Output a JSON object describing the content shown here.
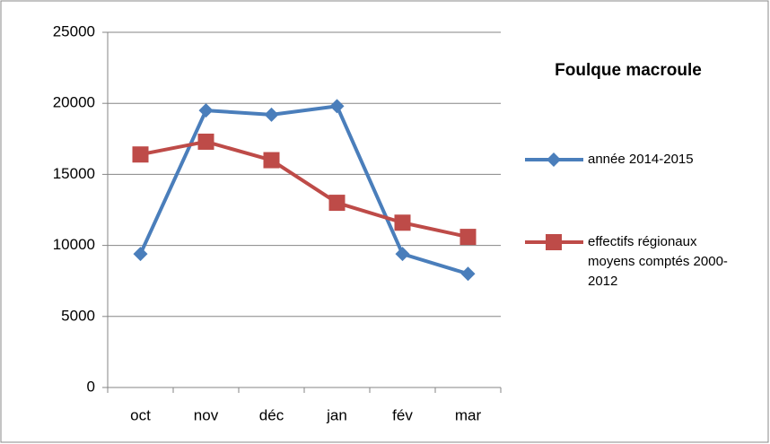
{
  "chart_data": {
    "type": "line",
    "title": "Foulque macroule",
    "categories": [
      "oct",
      "nov",
      "déc",
      "jan",
      "fév",
      "mar"
    ],
    "series": [
      {
        "name": "année 2014-2015",
        "color": "#4a7ebb",
        "marker": "diamond",
        "values": [
          9400,
          19500,
          19200,
          19800,
          9400,
          8000
        ]
      },
      {
        "name": "effectifs régionaux moyens comptés 2000-2012",
        "color": "#be4b48",
        "marker": "square",
        "values": [
          16400,
          17300,
          16000,
          13000,
          11600,
          10600
        ]
      }
    ],
    "ylim": [
      0,
      25000
    ],
    "yticks": [
      0,
      5000,
      10000,
      15000,
      20000,
      25000
    ],
    "grid": true
  }
}
